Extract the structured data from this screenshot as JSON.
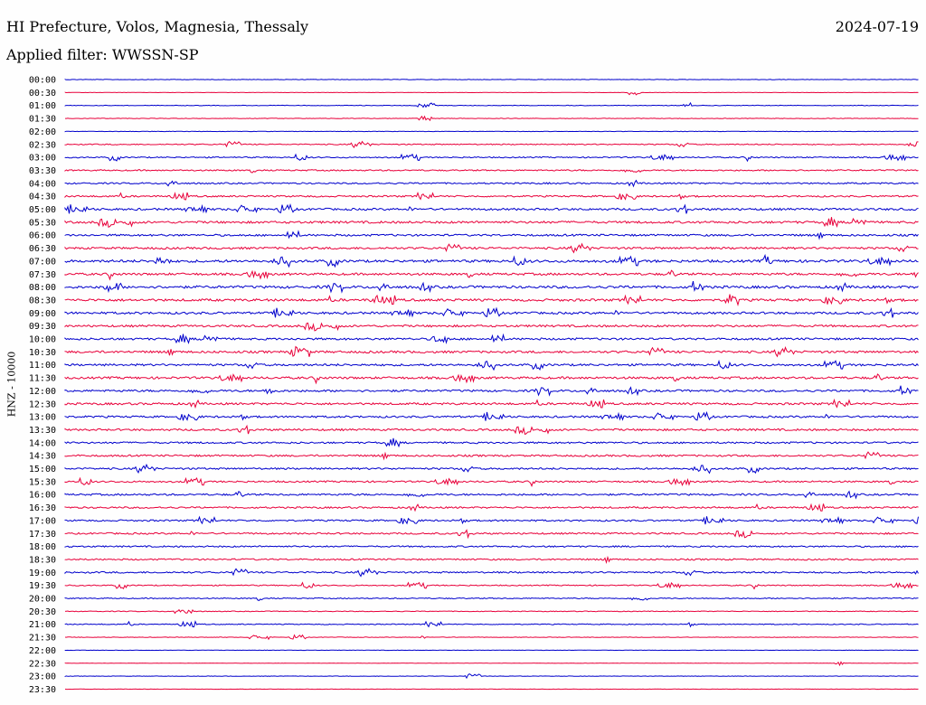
{
  "header": {
    "station": "HI Prefecture, Volos, Magnesia, Thessaly",
    "date": "2024-07-19",
    "filter": "Applied filter: WWSSN-SP"
  },
  "chart_data": {
    "type": "line",
    "title": "HI Prefecture, Volos, Magnesia, Thessaly",
    "ylabel": "HNZ - 10000",
    "xlabel": "",
    "colors": [
      "#0000cc",
      "#e8003a"
    ],
    "rows": [
      {
        "time": "00:00",
        "activity": 0.15
      },
      {
        "time": "00:30",
        "activity": 0.12
      },
      {
        "time": "01:00",
        "activity": 0.2
      },
      {
        "time": "01:30",
        "activity": 0.18
      },
      {
        "time": "02:00",
        "activity": 0.15
      },
      {
        "time": "02:30",
        "activity": 0.35
      },
      {
        "time": "03:00",
        "activity": 0.4
      },
      {
        "time": "03:30",
        "activity": 0.45
      },
      {
        "time": "04:00",
        "activity": 0.5
      },
      {
        "time": "04:30",
        "activity": 0.55
      },
      {
        "time": "05:00",
        "activity": 0.7
      },
      {
        "time": "05:30",
        "activity": 0.75
      },
      {
        "time": "06:00",
        "activity": 0.65
      },
      {
        "time": "06:30",
        "activity": 0.7
      },
      {
        "time": "07:00",
        "activity": 0.85
      },
      {
        "time": "07:30",
        "activity": 0.75
      },
      {
        "time": "08:00",
        "activity": 0.85
      },
      {
        "time": "08:30",
        "activity": 0.8
      },
      {
        "time": "09:00",
        "activity": 0.75
      },
      {
        "time": "09:30",
        "activity": 0.7
      },
      {
        "time": "10:00",
        "activity": 0.7
      },
      {
        "time": "10:30",
        "activity": 0.75
      },
      {
        "time": "11:00",
        "activity": 0.7
      },
      {
        "time": "11:30",
        "activity": 0.75
      },
      {
        "time": "12:00",
        "activity": 0.7
      },
      {
        "time": "12:30",
        "activity": 0.7
      },
      {
        "time": "13:00",
        "activity": 0.65
      },
      {
        "time": "13:30",
        "activity": 0.65
      },
      {
        "time": "14:00",
        "activity": 0.6
      },
      {
        "time": "14:30",
        "activity": 0.6
      },
      {
        "time": "15:00",
        "activity": 0.6
      },
      {
        "time": "15:30",
        "activity": 0.55
      },
      {
        "time": "16:00",
        "activity": 0.6
      },
      {
        "time": "16:30",
        "activity": 0.55
      },
      {
        "time": "17:00",
        "activity": 0.55
      },
      {
        "time": "17:30",
        "activity": 0.55
      },
      {
        "time": "18:00",
        "activity": 0.5
      },
      {
        "time": "18:30",
        "activity": 0.5
      },
      {
        "time": "19:00",
        "activity": 0.55
      },
      {
        "time": "19:30",
        "activity": 0.35
      },
      {
        "time": "20:00",
        "activity": 0.35
      },
      {
        "time": "20:30",
        "activity": 0.25
      },
      {
        "time": "21:00",
        "activity": 0.3
      },
      {
        "time": "21:30",
        "activity": 0.15
      },
      {
        "time": "22:00",
        "activity": 0.12
      },
      {
        "time": "22:30",
        "activity": 0.12
      },
      {
        "time": "23:00",
        "activity": 0.15
      },
      {
        "time": "23:30",
        "activity": 0.12
      }
    ]
  }
}
